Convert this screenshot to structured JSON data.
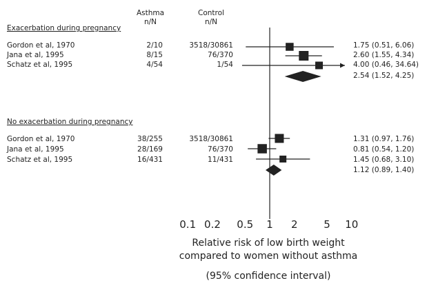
{
  "chart_data": {
    "type": "forest",
    "column_headers": {
      "asthma": [
        "Asthma",
        "n/N"
      ],
      "control": [
        "Control",
        "n/N"
      ]
    },
    "sections": [
      {
        "title": "Exacerbation during pregnancy",
        "studies": [
          {
            "study": "Gordon et al, 1970",
            "asthma": "2/10",
            "control": "3518/30861",
            "rr": 1.75,
            "lo": 0.51,
            "hi": 6.06,
            "ci_text": "1.75 (0.51, 6.06)",
            "weight": 0.55
          },
          {
            "study": "Jana et al, 1995",
            "asthma": "8/15",
            "control": "76/370",
            "rr": 2.6,
            "lo": 1.55,
            "hi": 4.34,
            "ci_text": "2.60 (1.55, 4.34)",
            "weight": 0.8
          },
          {
            "study": "Schatz et al, 1995",
            "asthma": "4/54",
            "control": "1/54",
            "rr": 4.0,
            "lo": 0.46,
            "hi": 34.64,
            "ci_text": "4.00 (0.46, 34.64)",
            "weight": 0.5,
            "arrow_right": true
          }
        ],
        "pooled": {
          "rr": 2.54,
          "lo": 1.52,
          "hi": 4.25,
          "ci_text": "2.54 (1.52, 4.25)"
        }
      },
      {
        "title": "No exacerbation during pregnancy",
        "studies": [
          {
            "study": "Gordon et al, 1970",
            "asthma": "38/255",
            "control": "3518/30861",
            "rr": 1.31,
            "lo": 0.97,
            "hi": 1.76,
            "ci_text": "1.31 (0.97, 1.76)",
            "weight": 0.7
          },
          {
            "study": "Jana et al, 1995",
            "asthma": "28/169",
            "control": "76/370",
            "rr": 0.81,
            "lo": 0.54,
            "hi": 1.2,
            "ci_text": "0.81 (0.54, 1.20)",
            "weight": 0.75
          },
          {
            "study": "Schatz et al, 1995",
            "asthma": "16/431",
            "control": "11/431",
            "rr": 1.45,
            "lo": 0.68,
            "hi": 3.1,
            "ci_text": "1.45 (0.68, 3.10)",
            "weight": 0.4
          }
        ],
        "pooled": {
          "rr": 1.12,
          "lo": 0.89,
          "hi": 1.4,
          "ci_text": "1.12 (0.89, 1.40)"
        }
      }
    ],
    "x_scale": "log",
    "x_ticks": [
      0.1,
      0.2,
      0.5,
      1,
      2,
      5,
      10
    ],
    "x_tick_labels": [
      "0.1",
      "0.2",
      "0.5",
      "1",
      "2",
      "5",
      "10"
    ],
    "reference_line": 1,
    "xlabel_lines": [
      "Relative risk of low birth weight",
      "compared to women without asthma",
      "(95% confidence interval)"
    ],
    "colors": {
      "ink": "#222222",
      "background": "#ffffff"
    }
  }
}
